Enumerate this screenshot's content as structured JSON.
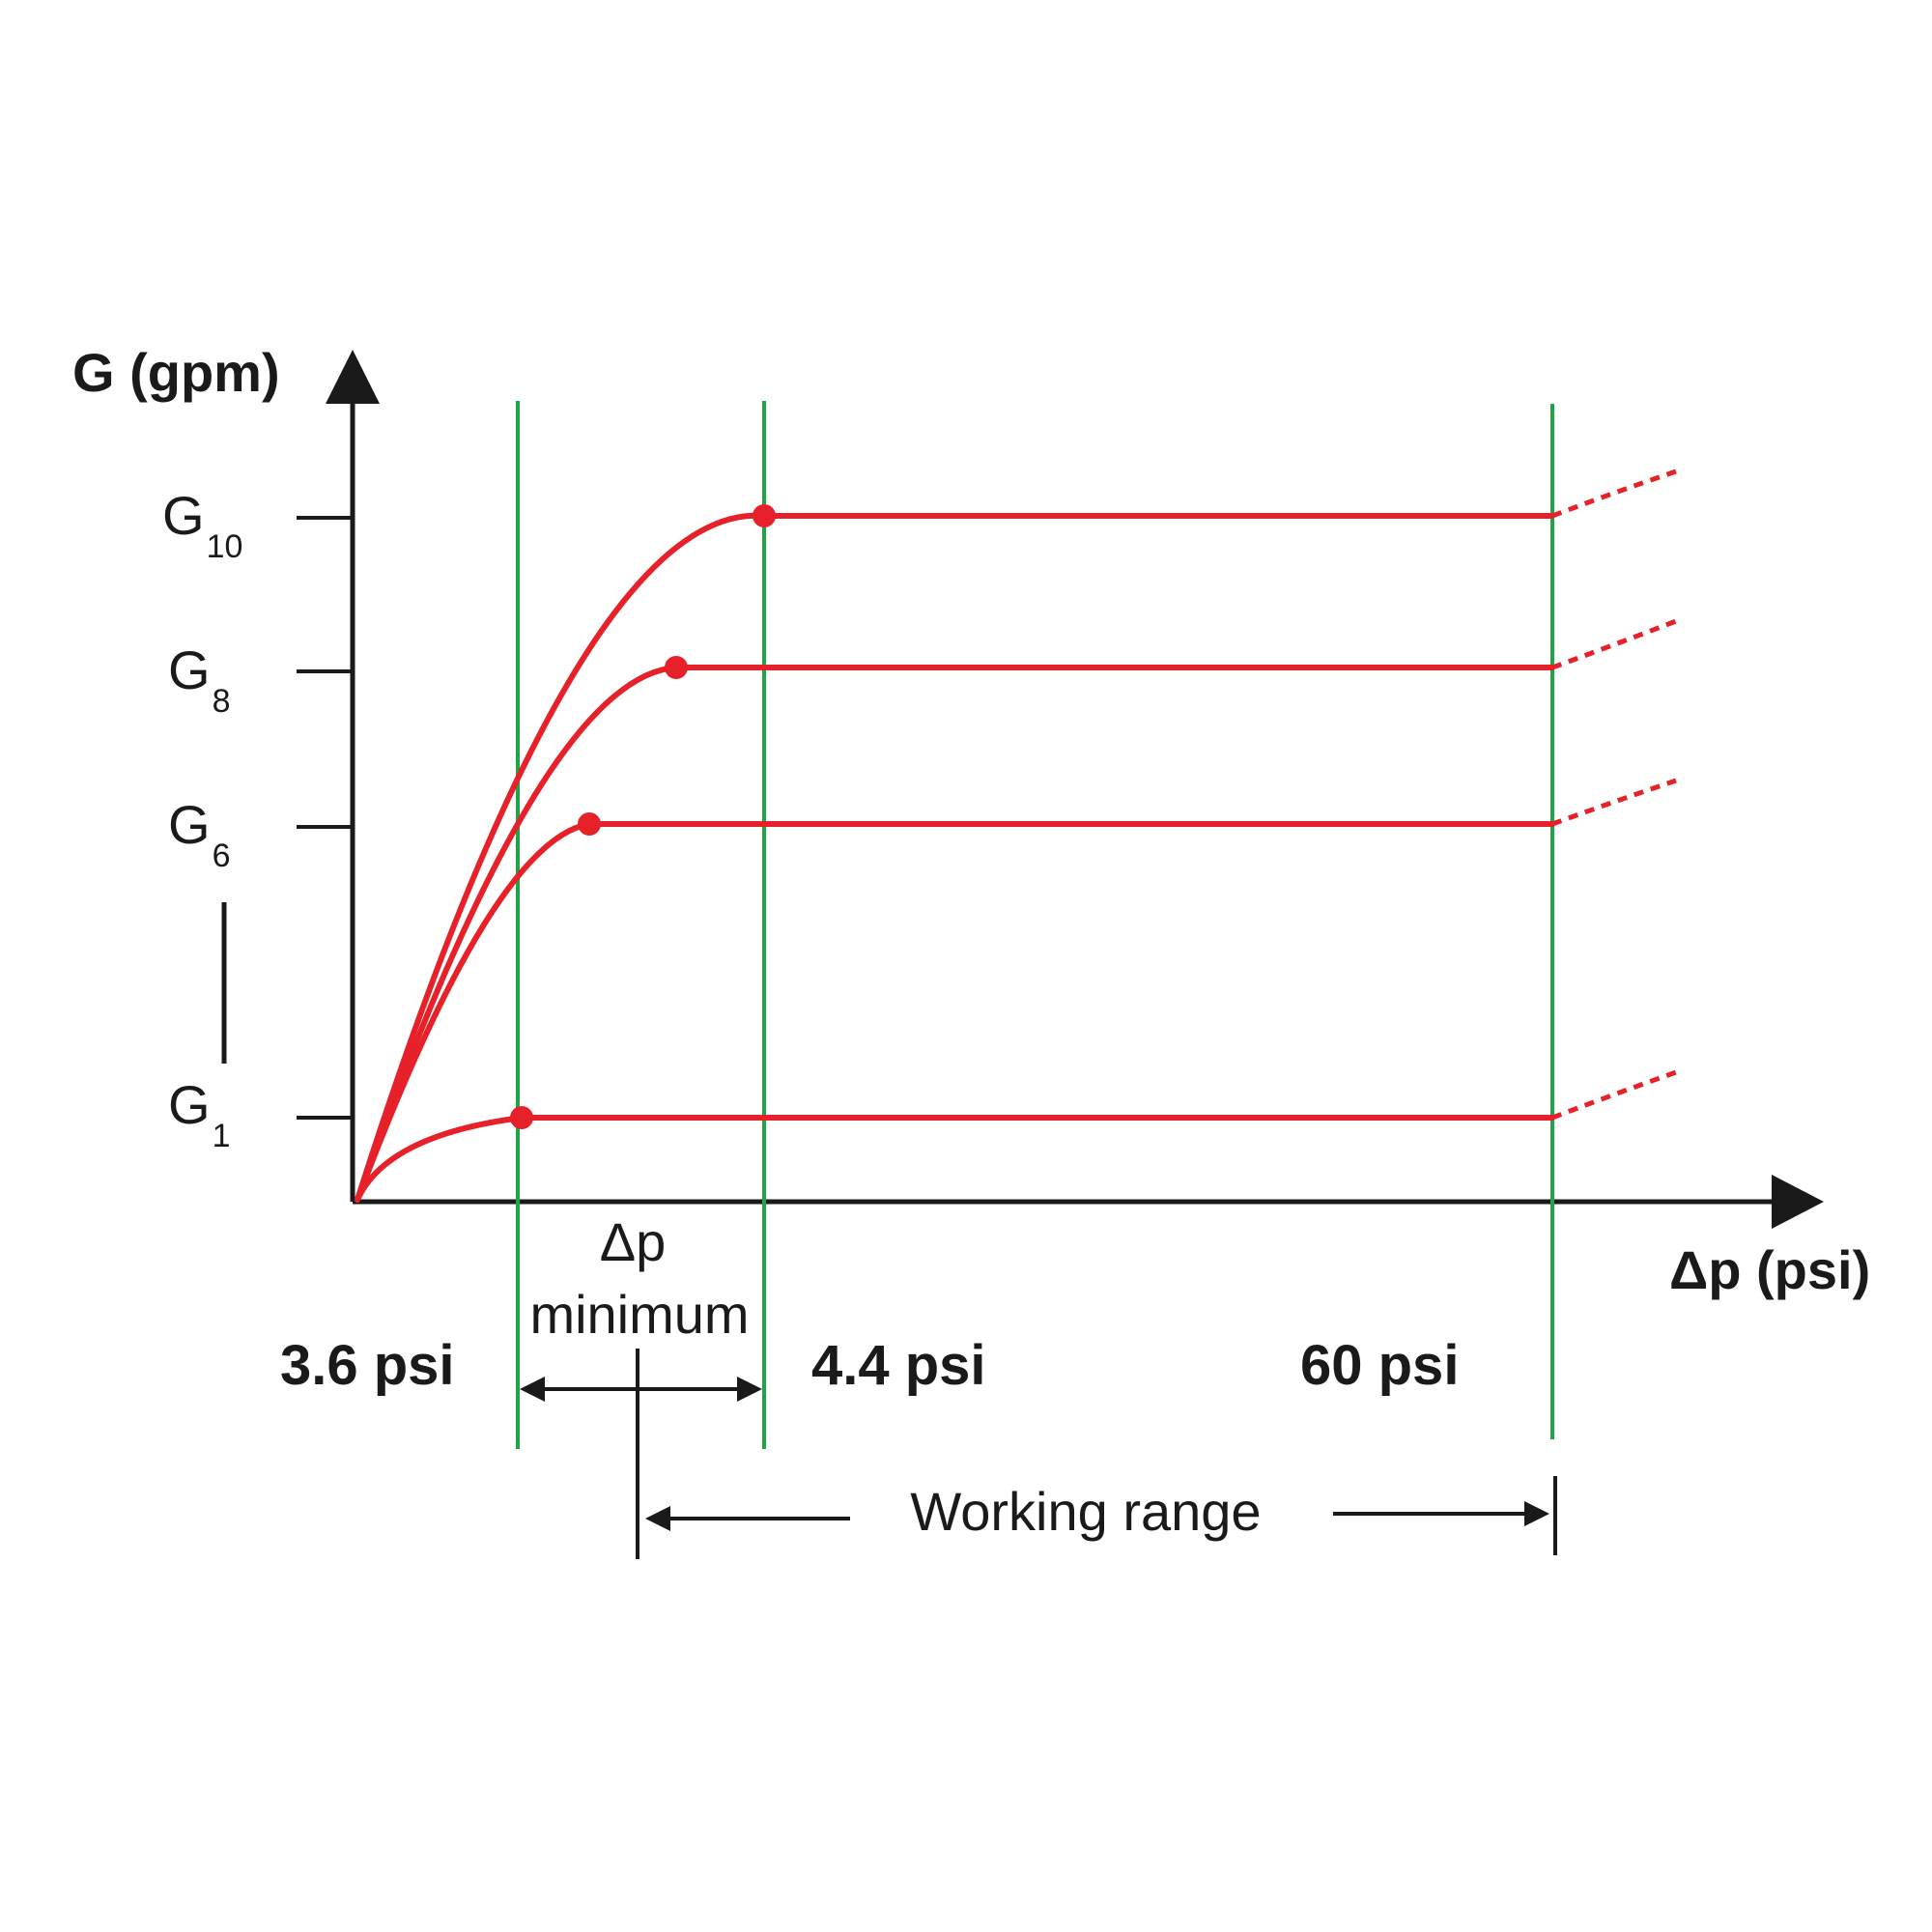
{
  "chart_data": {
    "type": "line",
    "title": "",
    "xlabel": "Δp (psi)",
    "ylabel": "G (gpm)",
    "y_ticks": [
      {
        "main": "G",
        "sub": "10",
        "level": 10
      },
      {
        "main": "G",
        "sub": "8",
        "level": 8
      },
      {
        "main": "G",
        "sub": "6",
        "level": 6
      },
      {
        "main": "G",
        "sub": "1",
        "level": 1
      }
    ],
    "x_markers": [
      {
        "label": "3.6 psi"
      },
      {
        "label": "4.4 psi"
      },
      {
        "label": "60 psi"
      }
    ],
    "series": [
      {
        "level": 10,
        "plateau_starts_at": "4.4 psi"
      },
      {
        "level": 8,
        "plateau_starts_at": "between 3.6 psi and 4.4 psi"
      },
      {
        "level": 6,
        "plateau_starts_at": "between 3.6 psi and 4.4 psi"
      },
      {
        "level": 1,
        "plateau_starts_at": "3.6 psi"
      }
    ],
    "annotations": {
      "dp_min_line1": "Δp",
      "dp_min_line2": "minimum",
      "working_range": "Working range"
    },
    "colors": {
      "curves": "#e62129",
      "reference_lines": "#1fa547",
      "axes": "#1a1a1a"
    },
    "grid": false,
    "legend": "none"
  }
}
